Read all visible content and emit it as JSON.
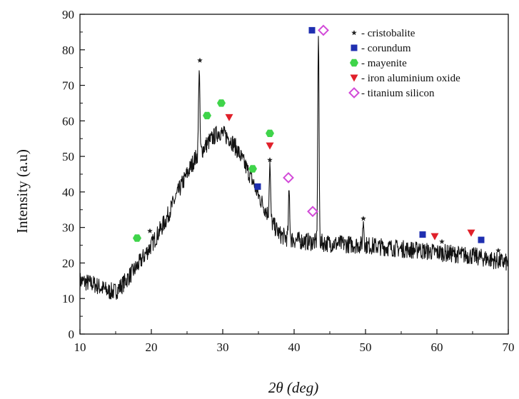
{
  "chart_data": {
    "type": "line",
    "xlabel": "2θ (deg)",
    "ylabel": "Intensity (a.u)",
    "xlim": [
      10,
      70
    ],
    "ylim": [
      0,
      90
    ],
    "xticks": [
      10,
      20,
      30,
      40,
      50,
      60,
      70
    ],
    "yticks": [
      0,
      10,
      20,
      30,
      40,
      50,
      60,
      70,
      80,
      90
    ],
    "grid": false,
    "legend_position": "top-right",
    "colors": {
      "pattern": "#111111",
      "cristobalite": "#222222",
      "corundum": "#1f2fb0",
      "mayenite": "#3fd44a",
      "iron_aluminum_oxide": "#e0202a",
      "titanium_silicon": "#d24ad8"
    },
    "series": [
      {
        "baseline": [
          [
            10,
            15
          ],
          [
            12,
            14
          ],
          [
            14,
            12
          ],
          [
            15,
            12
          ],
          [
            16,
            14
          ],
          [
            18,
            19
          ],
          [
            20,
            25
          ],
          [
            22,
            32
          ],
          [
            24,
            41
          ],
          [
            26,
            49
          ],
          [
            28,
            54
          ],
          [
            29.5,
            57
          ],
          [
            31,
            55
          ],
          [
            32,
            52
          ],
          [
            34,
            44
          ],
          [
            35,
            39
          ],
          [
            36,
            35
          ],
          [
            37,
            31
          ],
          [
            38,
            28
          ],
          [
            39,
            27
          ],
          [
            40,
            26.5
          ],
          [
            42,
            26
          ],
          [
            45,
            25.5
          ],
          [
            50,
            25
          ],
          [
            55,
            24
          ],
          [
            60,
            23
          ],
          [
            65,
            22
          ],
          [
            70,
            20
          ]
        ],
        "peaks": [
          [
            26.7,
            75
          ],
          [
            36.6,
            48
          ],
          [
            39.3,
            40
          ],
          [
            43.4,
            84
          ],
          [
            49.7,
            32
          ],
          [
            57.5,
            25
          ],
          [
            61,
            23
          ]
        ],
        "noise_amplitude": 2.5
      }
    ],
    "legend": [
      {
        "marker": "star",
        "color_key": "cristobalite",
        "label": "- cristobalite"
      },
      {
        "marker": "square",
        "color_key": "corundum",
        "label": "- corundum"
      },
      {
        "marker": "hexagon",
        "color_key": "mayenite",
        "label": "- mayenite"
      },
      {
        "marker": "triangle-down",
        "color_key": "iron_aluminum_oxide",
        "label": "- iron aluminium oxide"
      },
      {
        "marker": "diamond",
        "color_key": "titanium_silicon",
        "label": "- titanium silicon"
      }
    ],
    "annotations": [
      {
        "marker": "star",
        "color_key": "cristobalite",
        "x": 19.8,
        "y": 29
      },
      {
        "marker": "star",
        "color_key": "cristobalite",
        "x": 26.8,
        "y": 77
      },
      {
        "marker": "star",
        "color_key": "cristobalite",
        "x": 36.6,
        "y": 49
      },
      {
        "marker": "star",
        "color_key": "cristobalite",
        "x": 49.7,
        "y": 32.5
      },
      {
        "marker": "star",
        "color_key": "cristobalite",
        "x": 60.7,
        "y": 26
      },
      {
        "marker": "star",
        "color_key": "cristobalite",
        "x": 68.6,
        "y": 23.5
      },
      {
        "marker": "square",
        "color_key": "corundum",
        "x": 34.9,
        "y": 41.5
      },
      {
        "marker": "square",
        "color_key": "corundum",
        "x": 42.5,
        "y": 85.5
      },
      {
        "marker": "square",
        "color_key": "corundum",
        "x": 58.0,
        "y": 28
      },
      {
        "marker": "square",
        "color_key": "corundum",
        "x": 66.2,
        "y": 26.5
      },
      {
        "marker": "hexagon",
        "color_key": "mayenite",
        "x": 18.0,
        "y": 27
      },
      {
        "marker": "hexagon",
        "color_key": "mayenite",
        "x": 27.8,
        "y": 61.5
      },
      {
        "marker": "hexagon",
        "color_key": "mayenite",
        "x": 29.8,
        "y": 65
      },
      {
        "marker": "hexagon",
        "color_key": "mayenite",
        "x": 34.2,
        "y": 46.5
      },
      {
        "marker": "hexagon",
        "color_key": "mayenite",
        "x": 36.6,
        "y": 56.5
      },
      {
        "marker": "triangle-down",
        "color_key": "iron_aluminum_oxide",
        "x": 30.9,
        "y": 61
      },
      {
        "marker": "triangle-down",
        "color_key": "iron_aluminum_oxide",
        "x": 36.6,
        "y": 53
      },
      {
        "marker": "triangle-down",
        "color_key": "iron_aluminum_oxide",
        "x": 59.7,
        "y": 27.5
      },
      {
        "marker": "triangle-down",
        "color_key": "iron_aluminum_oxide",
        "x": 64.8,
        "y": 28.5
      },
      {
        "marker": "diamond",
        "color_key": "titanium_silicon",
        "x": 39.2,
        "y": 44
      },
      {
        "marker": "diamond",
        "color_key": "titanium_silicon",
        "x": 42.6,
        "y": 34.5
      },
      {
        "marker": "diamond",
        "color_key": "titanium_silicon",
        "x": 44.1,
        "y": 85.5
      }
    ]
  }
}
